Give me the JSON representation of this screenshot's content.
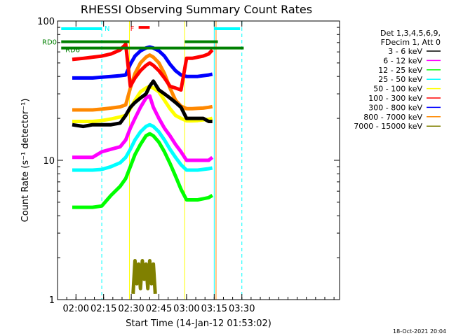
{
  "chart_data": {
    "type": "line",
    "title": "RHESSI Observing Summary Count Rates",
    "xlabel": "Start Time (14-Jan-12 01:53:02)",
    "ylabel": "Count Rate (s⁻¹ detector⁻¹)",
    "y_scale": "log",
    "ylim": [
      1,
      100
    ],
    "xlim": [
      -5,
      148
    ],
    "x_unit": "minutes after 01:55",
    "x_ticks": [
      {
        "value": 5,
        "label": "02:00"
      },
      {
        "value": 20,
        "label": "02:15"
      },
      {
        "value": 35,
        "label": "02:30"
      },
      {
        "value": 50,
        "label": "02:45"
      },
      {
        "value": 65,
        "label": "03:00"
      },
      {
        "value": 80,
        "label": "03:15"
      },
      {
        "value": 95,
        "label": "03:30"
      }
    ],
    "y_ticks": [
      {
        "value": 1,
        "label": "1"
      },
      {
        "value": 10,
        "label": "10"
      },
      {
        "value": 100,
        "label": "100"
      }
    ],
    "legend_header": [
      "Det 1,3,4,5,6,9,",
      "FDecim 1, Att 0"
    ],
    "legend_position": "right",
    "series": [
      {
        "name": "3 - 6 keV",
        "color": "#000000",
        "x": [
          3,
          9,
          14,
          19,
          24,
          29,
          32,
          34.5,
          37,
          40,
          43,
          45,
          47,
          50,
          53,
          56,
          59,
          62,
          65,
          68,
          71,
          74,
          77,
          79
        ],
        "y": [
          18,
          17.5,
          18,
          18,
          18,
          18.5,
          21,
          24,
          26,
          28,
          30,
          34,
          37,
          32,
          30,
          28,
          26,
          24,
          20,
          20,
          20,
          20,
          19,
          19
        ]
      },
      {
        "name": "6 - 12 keV",
        "color": "#ff00ff",
        "x": [
          3,
          9,
          14,
          19,
          24,
          29,
          32,
          34.5,
          37,
          40,
          43,
          45,
          47,
          50,
          53,
          56,
          59,
          62,
          65,
          68,
          71,
          74,
          77,
          79
        ],
        "y": [
          10.5,
          10.5,
          10.5,
          11.5,
          12,
          12.5,
          14,
          17,
          20,
          24,
          28,
          29,
          24,
          20,
          17,
          15,
          13,
          11.5,
          10,
          10,
          10,
          10,
          10,
          10.5
        ]
      },
      {
        "name": "12 - 25 keV",
        "color": "#00ff00",
        "x": [
          3,
          9,
          14,
          19,
          24,
          29,
          32,
          34.5,
          37,
          40,
          43,
          45,
          47,
          50,
          53,
          56,
          59,
          62,
          65,
          68,
          71,
          74,
          77,
          79
        ],
        "y": [
          4.6,
          4.6,
          4.6,
          4.7,
          5.6,
          6.5,
          7.4,
          9,
          11,
          13,
          15,
          15.5,
          15,
          13.5,
          11.5,
          9.5,
          7.7,
          6.2,
          5.2,
          5.2,
          5.2,
          5.3,
          5.4,
          5.6
        ]
      },
      {
        "name": "25 - 50 keV",
        "color": "#00ffff",
        "x": [
          3,
          9,
          14,
          19,
          24,
          29,
          32,
          34.5,
          37,
          40,
          43,
          45,
          47,
          50,
          53,
          56,
          59,
          62,
          65,
          68,
          71,
          74,
          77,
          79
        ],
        "y": [
          8.5,
          8.5,
          8.5,
          8.6,
          9,
          9.6,
          10.5,
          12,
          14,
          16,
          17.5,
          18,
          17.5,
          16,
          14,
          12,
          10.5,
          9.3,
          8.5,
          8.5,
          8.5,
          8.6,
          8.7,
          8.8
        ]
      },
      {
        "name": "50 - 100 keV",
        "color": "#ffff00",
        "x": [
          3,
          9,
          14,
          19,
          24,
          29,
          32,
          34.5,
          37,
          40,
          43,
          45,
          47,
          50,
          53,
          56,
          59,
          62,
          65,
          68,
          71,
          74,
          77,
          79
        ],
        "y": [
          19,
          19,
          19,
          19.3,
          19.8,
          20.5,
          21,
          23.5,
          27,
          31,
          33,
          34,
          33,
          31,
          27,
          23.5,
          21,
          20,
          19.2,
          19.2,
          19.3,
          19.5,
          19.7,
          20
        ]
      },
      {
        "name": "100 - 300 keV",
        "color": "#ff0000",
        "x": [
          3,
          9,
          14,
          19,
          24,
          29,
          32,
          34.5,
          37,
          40,
          43,
          45,
          47,
          50,
          53,
          56,
          59,
          62,
          65,
          68,
          71,
          74,
          77,
          79
        ],
        "y": [
          53,
          54,
          55,
          56,
          58,
          62,
          68,
          34,
          39,
          44,
          48,
          50,
          48,
          44,
          39,
          34,
          33,
          32,
          54,
          54,
          55,
          56,
          58,
          62
        ]
      },
      {
        "name": "300 - 800 keV",
        "color": "#0000ff",
        "x": [
          3,
          9,
          14,
          19,
          24,
          29,
          32,
          34.5,
          37,
          40,
          43,
          45,
          47,
          50,
          53,
          56,
          59,
          62,
          65,
          68,
          71,
          74,
          77,
          79
        ],
        "y": [
          39,
          39,
          39,
          39.5,
          40,
          40.5,
          41,
          49,
          56,
          61,
          64,
          65,
          64,
          61,
          56,
          49,
          44,
          41,
          40,
          40,
          40,
          40.5,
          41,
          41.5
        ]
      },
      {
        "name": "800 - 7000 keV",
        "color": "#ff8800",
        "x": [
          3,
          9,
          14,
          19,
          24,
          29,
          32,
          34.5,
          37,
          40,
          43,
          45,
          47,
          50,
          53,
          56,
          59,
          62,
          65,
          68,
          71,
          74,
          77,
          79
        ],
        "y": [
          23,
          23,
          23,
          23.3,
          23.7,
          24.2,
          25,
          33,
          42,
          50,
          55,
          57,
          55,
          50,
          42,
          33,
          27,
          24.5,
          23.5,
          23.5,
          23.6,
          23.7,
          24,
          24.3
        ]
      },
      {
        "name": "7000 - 15000 keV",
        "color": "#808000",
        "x": [
          36,
          37,
          38,
          39,
          40,
          41,
          42,
          43,
          44,
          45,
          46,
          47,
          48
        ],
        "y": [
          1.1,
          1.9,
          1.3,
          1.8,
          1.2,
          1.9,
          1.4,
          1.8,
          1.2,
          1.9,
          1.3,
          1.8,
          1.1
        ]
      }
    ],
    "state_bars": [
      {
        "label": "N",
        "color": "#00ffff",
        "y": 88,
        "segments": [
          [
            -3,
            19
          ],
          [
            80,
            94
          ]
        ]
      },
      {
        "label": "F",
        "color": "#ff0000",
        "y": 90,
        "segments": [
          [
            39,
            45
          ]
        ]
      },
      {
        "label": "RD0",
        "color": "#008000",
        "y": 71,
        "segments": [
          [
            -3,
            34
          ],
          [
            64,
            82
          ]
        ]
      },
      {
        "label": "RD6",
        "color": "#008000",
        "y": 64,
        "segments": [
          [
            -3,
            34
          ],
          [
            34,
            96
          ]
        ]
      }
    ],
    "vlines": [
      {
        "x": 19,
        "color": "#00ffff",
        "dashed": true
      },
      {
        "x": 95,
        "color": "#00ffff",
        "dashed": true
      },
      {
        "x": 80,
        "color": "#00ffff",
        "dashed": false
      },
      {
        "x": 34,
        "color": "#ffff00",
        "dashed": false
      },
      {
        "x": 64,
        "color": "#ffff00",
        "dashed": false
      },
      {
        "x": 81,
        "color": "#ff8800",
        "dashed": false
      }
    ]
  },
  "footer": {
    "date": "18-Oct-2021 20:04"
  }
}
